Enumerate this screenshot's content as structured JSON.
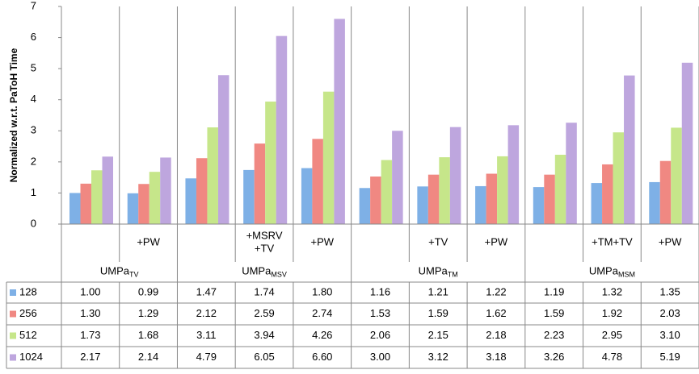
{
  "chart_data": {
    "type": "bar",
    "y_label": "Normalized w.r.t. PaToH Time",
    "categories": [
      null,
      "+PW",
      null,
      "+MSRV\n+TV",
      "+PW",
      null,
      "+TV",
      "+PW",
      null,
      "+TM+TV",
      "+PW"
    ],
    "groups": [
      {
        "label": "UMPa",
        "sub": "TV",
        "span": 2
      },
      {
        "label": "UMPa",
        "sub": "MSV",
        "span": 3
      },
      {
        "label": "UMPa",
        "sub": "TM",
        "span": 3
      },
      {
        "label": "UMPa",
        "sub": "MSM",
        "span": 3
      }
    ],
    "series": [
      {
        "name": "128",
        "color": "#7eb0e6",
        "values": [
          1.0,
          0.99,
          1.47,
          1.74,
          1.8,
          1.16,
          1.21,
          1.22,
          1.19,
          1.32,
          1.35
        ],
        "value_labels": [
          "1.00",
          "0.99",
          "1.47",
          "1.74",
          "1.80",
          "1.16",
          "1.21",
          "1.22",
          "1.19",
          "1.32",
          "1.35"
        ]
      },
      {
        "name": "256",
        "color": "#f08882",
        "values": [
          1.3,
          1.29,
          2.12,
          2.59,
          2.74,
          1.53,
          1.59,
          1.62,
          1.59,
          1.92,
          2.03
        ],
        "value_labels": [
          "1.30",
          "1.29",
          "2.12",
          "2.59",
          "2.74",
          "1.53",
          "1.59",
          "1.62",
          "1.59",
          "1.92",
          "2.03"
        ]
      },
      {
        "name": "512",
        "color": "#c6e68a",
        "values": [
          1.73,
          1.68,
          3.11,
          3.94,
          4.26,
          2.06,
          2.15,
          2.18,
          2.23,
          2.95,
          3.1
        ],
        "value_labels": [
          "1.73",
          "1.68",
          "3.11",
          "3.94",
          "4.26",
          "2.06",
          "2.15",
          "2.18",
          "2.23",
          "2.95",
          "3.10"
        ]
      },
      {
        "name": "1024",
        "color": "#bea6de",
        "values": [
          2.17,
          2.14,
          4.79,
          6.05,
          6.6,
          3.0,
          3.12,
          3.18,
          3.26,
          4.78,
          5.19
        ],
        "value_labels": [
          "2.17",
          "2.14",
          "4.79",
          "6.05",
          "6.60",
          "3.00",
          "3.12",
          "3.18",
          "3.26",
          "4.78",
          "5.19"
        ]
      }
    ],
    "ylim": [
      0,
      7
    ],
    "yticks": [
      0,
      1,
      2,
      3,
      4,
      5,
      6,
      7
    ]
  }
}
